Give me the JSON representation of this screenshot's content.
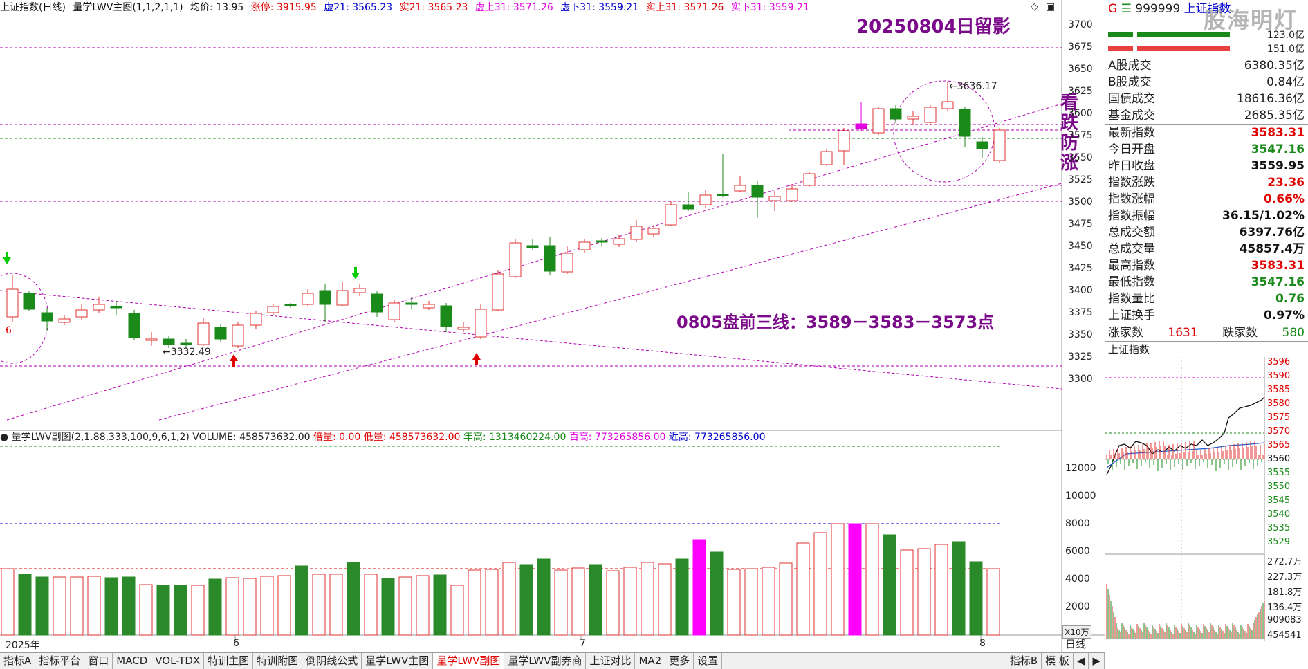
{
  "title_bar": {
    "index_name": "上证指数(日线)",
    "indicator": "量学LWV主图(1,1,2,1,1)",
    "avg": "均价: 13.95",
    "limit_up": "涨停: 3915.95",
    "xu21": "虚21: 3565.23",
    "shi21": "实21: 3565.23",
    "xushang31": "虚上31: 3571.26",
    "xuxia31": "虚下31: 3559.21",
    "shishang31": "实上31: 3571.26",
    "shixia31": "实下31: 3559.21"
  },
  "annotations": {
    "date_note": "20250804日留影",
    "vertical_note": [
      "看",
      "跌",
      "防",
      "涨"
    ],
    "three_lines": "0805盘前三线：3589－3583－3573点",
    "high_label": "3636.17",
    "low_label": "3332.49",
    "six_label": "6"
  },
  "price_axis": [
    "3700",
    "3675",
    "3650",
    "3625",
    "3600",
    "3575",
    "3550",
    "3525",
    "3500",
    "3475",
    "3450",
    "3425",
    "3400",
    "3375",
    "3350",
    "3325",
    "3300"
  ],
  "vol_axis": [
    "12000",
    "10000",
    "8000",
    "6000",
    "4000",
    "2000"
  ],
  "vol_unit": "X10万",
  "sub_title": {
    "name": "量学LWV副图(2,1.88,333,100,9,6,1,2)",
    "volume": "VOLUME: 458573632.00",
    "beiliang": "倍量: 0.00",
    "diliang": "低量: 458573632.00",
    "nianliang": "年高: 1313460224.00",
    "baigao": "百高: 773265856.00",
    "jingao": "近高: 773265856.00"
  },
  "date_axis": {
    "year": "2025年",
    "m6": "6",
    "m7": "7",
    "m8": "8"
  },
  "tabs": [
    "指标A",
    "指标平台",
    "窗口",
    "MACD",
    "VOL-TDX",
    "特训主图",
    "特训附图",
    "倒阴线公式",
    "量学LWV主图",
    "量学LWV副图",
    "量学LWV副券商",
    "上证对比",
    "MA2",
    "更多",
    "设置"
  ],
  "active_tab": "量学LWV副图",
  "tabs_right": [
    "指标B",
    "模 板"
  ],
  "period": "日线",
  "right_panel": {
    "code": "999999",
    "code_prefix": "G",
    "name": "上证指数",
    "small_val1": "123.0亿",
    "small_val2": "151.0亿",
    "rows_a": [
      {
        "label": "A股成交",
        "value": "6380.35亿"
      },
      {
        "label": "B股成交",
        "value": "0.84亿"
      },
      {
        "label": "国债成交",
        "value": "18616.36亿"
      },
      {
        "label": "基金成交",
        "value": "2685.35亿"
      }
    ],
    "rows_b": [
      {
        "label": "最新指数",
        "value": "3583.31",
        "color": "#e00000"
      },
      {
        "label": "今日开盘",
        "value": "3547.16",
        "color": "#1a8a1a"
      },
      {
        "label": "昨日收盘",
        "value": "3559.95",
        "color": "#111111"
      },
      {
        "label": "指数涨跌",
        "value": "23.36",
        "color": "#e00000"
      },
      {
        "label": "指数涨幅",
        "value": "0.66%",
        "color": "#e00000"
      },
      {
        "label": "指数振幅",
        "value": "36.15/1.02%",
        "color": "#111111"
      },
      {
        "label": "总成交额",
        "value": "6397.76亿",
        "color": "#111111"
      },
      {
        "label": "总成交量",
        "value": "45857.4万",
        "color": "#111111"
      },
      {
        "label": "最高指数",
        "value": "3583.31",
        "color": "#e00000"
      },
      {
        "label": "最低指数",
        "value": "3547.16",
        "color": "#1a8a1a"
      },
      {
        "label": "指数量比",
        "value": "0.76",
        "color": "#1a8a1a"
      },
      {
        "label": "上证换手",
        "value": "0.97%",
        "color": "#111111"
      }
    ],
    "up_label": "涨家数",
    "up_value": "1631",
    "down_label": "跌家数",
    "down_value": "580",
    "mini_title": "上证指数",
    "mini_price_axis": [
      "3596",
      "3590",
      "3585",
      "3580",
      "3575",
      "3570",
      "3565",
      "3560",
      "3555",
      "3550",
      "3545",
      "3540",
      "3535",
      "3529"
    ],
    "mini_vol_axis": [
      "272.7万",
      "227.3万",
      "181.8万",
      "136.4万",
      "909083",
      "454541"
    ]
  },
  "watermark": "股海明灯"
}
